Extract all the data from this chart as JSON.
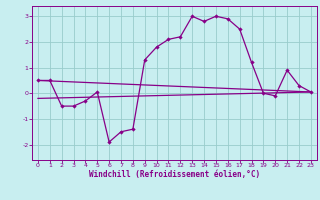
{
  "xlabel": "Windchill (Refroidissement éolien,°C)",
  "bg_color": "#c8eef0",
  "line_color": "#880088",
  "grid_color": "#99cccc",
  "xlim": [
    -0.5,
    23.5
  ],
  "ylim": [
    -2.6,
    3.4
  ],
  "yticks": [
    -2,
    -1,
    0,
    1,
    2,
    3
  ],
  "xticks": [
    0,
    1,
    2,
    3,
    4,
    5,
    6,
    7,
    8,
    9,
    10,
    11,
    12,
    13,
    14,
    15,
    16,
    17,
    18,
    19,
    20,
    21,
    22,
    23
  ],
  "main_x": [
    0,
    1,
    2,
    3,
    4,
    5,
    6,
    7,
    8,
    9,
    10,
    11,
    12,
    13,
    14,
    15,
    16,
    17,
    18,
    19,
    20,
    21,
    22,
    23
  ],
  "main_y": [
    0.5,
    0.5,
    -0.5,
    -0.5,
    -0.3,
    0.05,
    -1.9,
    -1.5,
    -1.4,
    1.3,
    1.8,
    2.1,
    2.2,
    3.0,
    2.8,
    3.0,
    2.9,
    2.5,
    1.2,
    0.0,
    -0.1,
    0.9,
    0.3,
    0.05
  ],
  "line2_x": [
    0,
    23
  ],
  "line2_y": [
    0.5,
    0.05
  ],
  "line3_x": [
    0,
    23
  ],
  "line3_y": [
    -0.2,
    0.05
  ]
}
